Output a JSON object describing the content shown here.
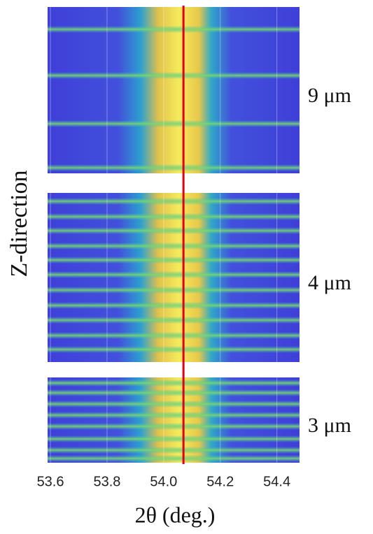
{
  "chart_data": {
    "type": "heatmap",
    "xlabel": "2θ (deg.)",
    "ylabel": "Z-direction",
    "panels": [
      "9 μm",
      "4 μm",
      "3 μm"
    ],
    "xlim": [
      53.59,
      54.48
    ],
    "xticks": [
      53.6,
      53.8,
      {
        "value": 54,
        "label": "54.0"
      },
      54.2,
      54.4
    ],
    "reference_line": 54.07,
    "reference_color": "#e0001b"
  }
}
